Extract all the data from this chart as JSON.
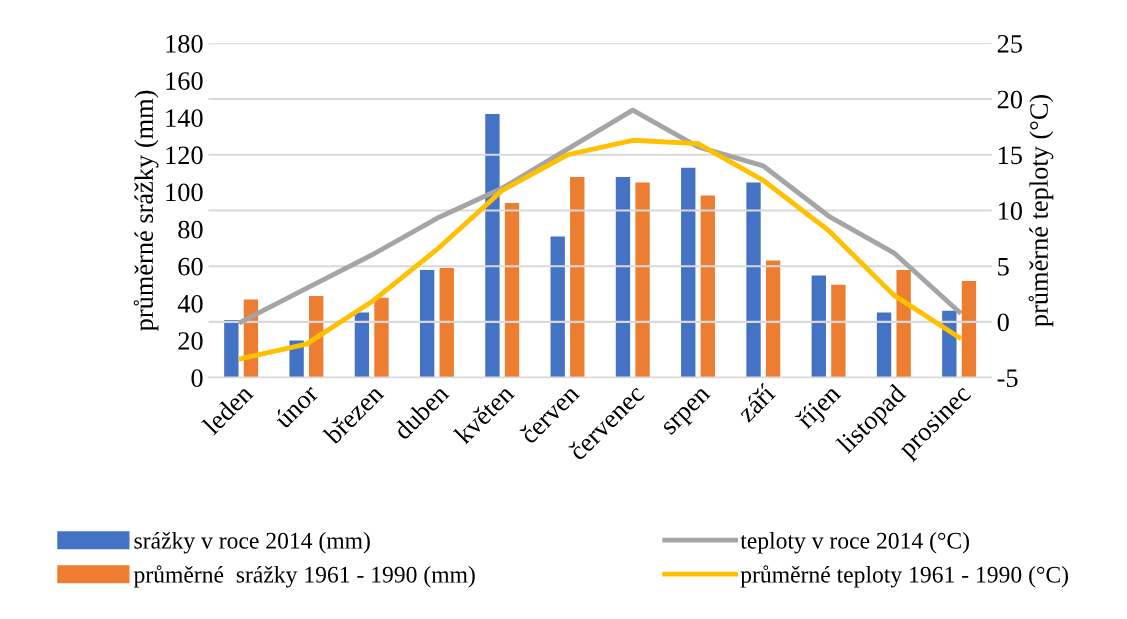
{
  "chart_data": {
    "type": "bar",
    "ylabel": "průměrné srážky (mm)",
    "y2label": "průměrné teploty (°C)",
    "categories": [
      "leden",
      "únor",
      "březen",
      "duben",
      "květen",
      "červen",
      "červenec",
      "srpen",
      "září",
      "říjen",
      "listopad",
      "prosinec"
    ],
    "series": [
      {
        "name": "srážky v roce 2014 (mm)",
        "color": "#4472c4",
        "values": [
          31,
          20,
          35,
          58,
          142,
          76,
          108,
          113,
          105,
          55,
          35,
          36
        ]
      },
      {
        "name": "průměrné  srážky 1961 - 1990 (mm)",
        "color": "#ed7d31",
        "values": [
          42,
          44,
          43,
          59,
          94,
          108,
          105,
          98,
          63,
          50,
          58,
          52
        ]
      },
      {
        "name": "teploty v roce 2014 (°C)",
        "type": "line",
        "axis": "y2",
        "color": "#a5a5a5",
        "values": [
          0,
          3,
          6,
          9.3,
          12,
          15.5,
          19,
          15.7,
          14,
          9.5,
          6.2,
          0.9
        ]
      },
      {
        "name": "průměrné teploty 1961 - 1990 (°C)",
        "type": "line",
        "axis": "y2",
        "color": "#ffc000",
        "values": [
          -3.3,
          -2,
          1.8,
          6.5,
          11.8,
          15,
          16.3,
          16,
          12.7,
          8.2,
          2.4,
          -1.4
        ]
      }
    ],
    "ylim": [
      0,
      180
    ],
    "yticks": [
      0,
      20,
      40,
      60,
      80,
      100,
      120,
      140,
      160,
      180
    ],
    "y2lim": [
      -5,
      25
    ],
    "y2ticks": [
      {
        "value": -5,
        "label": "-5"
      },
      0,
      5,
      10,
      15,
      20,
      25
    ],
    "grid": "y",
    "legend": "bottom",
    "line_style": "solid",
    "marker": "none"
  }
}
